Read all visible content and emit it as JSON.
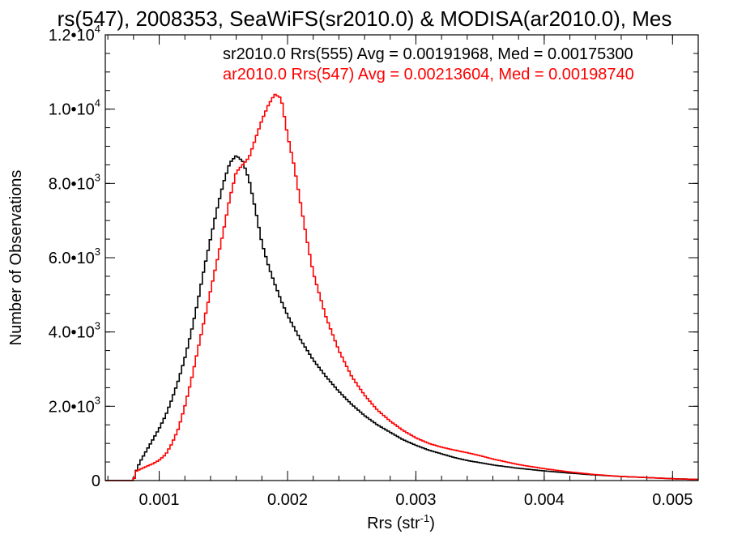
{
  "chart_data": {
    "type": "line",
    "title": "rs(547), 2008353, SeaWiFS(sr2010.0) & MODISA(ar2010.0), Mes",
    "xlabel": "Rrs (str",
    "xlabel_exp": "-1",
    "xlabel_end": ")",
    "ylabel": "Number of Observations",
    "xlim": [
      0.00058,
      0.0052
    ],
    "ylim": [
      0,
      12000
    ],
    "x_ticks": [
      {
        "value": 0.001,
        "label": "0.001"
      },
      {
        "value": 0.002,
        "label": "0.002"
      },
      {
        "value": 0.003,
        "label": "0.003"
      },
      {
        "value": 0.004,
        "label": "0.004"
      },
      {
        "value": 0.005,
        "label": "0.005"
      }
    ],
    "y_ticks": [
      {
        "value": 0,
        "mant": "0",
        "exp": ""
      },
      {
        "value": 2000,
        "mant": "2.0•10",
        "exp": "3"
      },
      {
        "value": 4000,
        "mant": "4.0•10",
        "exp": "3"
      },
      {
        "value": 6000,
        "mant": "6.0•10",
        "exp": "3"
      },
      {
        "value": 8000,
        "mant": "8.0•10",
        "exp": "3"
      },
      {
        "value": 10000,
        "mant": "1.0•10",
        "exp": "4"
      },
      {
        "value": 12000,
        "mant": "1.2•10",
        "exp": "4"
      }
    ],
    "grid": false,
    "legend_position": "top-right",
    "series": [
      {
        "name": "sr2010.0 Rrs(555) Avg = 0.00191968, Med = 0.00175300",
        "color": "#000000",
        "x": [
          0.00058,
          0.0008,
          0.00082,
          0.00085,
          0.0009,
          0.00095,
          0.001,
          0.00105,
          0.0011,
          0.00115,
          0.0012,
          0.00125,
          0.0013,
          0.00135,
          0.0014,
          0.00145,
          0.0015,
          0.00155,
          0.0016,
          0.00165,
          0.0017,
          0.00175,
          0.0018,
          0.00185,
          0.0019,
          0.00195,
          0.002,
          0.0021,
          0.0022,
          0.0023,
          0.0024,
          0.0025,
          0.0026,
          0.0027,
          0.0028,
          0.0029,
          0.003,
          0.0031,
          0.0032,
          0.0033,
          0.0034,
          0.0036,
          0.0038,
          0.004,
          0.0042,
          0.0044,
          0.0046,
          0.0048,
          0.005,
          0.0052
        ],
        "y": [
          0,
          0,
          250,
          500,
          800,
          1100,
          1400,
          1750,
          2200,
          2700,
          3300,
          4000,
          4800,
          5700,
          6500,
          7300,
          8000,
          8550,
          8750,
          8600,
          8100,
          7300,
          6400,
          5800,
          5300,
          4850,
          4450,
          3800,
          3250,
          2800,
          2400,
          2050,
          1750,
          1500,
          1300,
          1100,
          950,
          820,
          720,
          620,
          540,
          420,
          330,
          260,
          200,
          150,
          110,
          80,
          50,
          30
        ]
      },
      {
        "name": "ar2010.0 Rrs(547) Avg = 0.00213604, Med = 0.00198740",
        "color": "#ff0000",
        "x": [
          0.00058,
          0.0008,
          0.00082,
          0.00085,
          0.0009,
          0.00095,
          0.001,
          0.00105,
          0.0011,
          0.00115,
          0.0012,
          0.00125,
          0.0013,
          0.00135,
          0.0014,
          0.00145,
          0.0015,
          0.00155,
          0.0016,
          0.00165,
          0.0017,
          0.00175,
          0.0018,
          0.00185,
          0.0019,
          0.00195,
          0.002,
          0.00205,
          0.0021,
          0.00215,
          0.0022,
          0.0023,
          0.0024,
          0.0025,
          0.0026,
          0.0027,
          0.0028,
          0.0029,
          0.003,
          0.0031,
          0.0032,
          0.0033,
          0.0034,
          0.0035,
          0.0036,
          0.0038,
          0.004,
          0.0042,
          0.0044,
          0.0046,
          0.0048,
          0.005,
          0.0052
        ],
        "y": [
          0,
          0,
          250,
          300,
          380,
          450,
          550,
          700,
          1000,
          1400,
          2000,
          2700,
          3500,
          4300,
          5100,
          5900,
          6700,
          7600,
          8300,
          8500,
          8700,
          9200,
          9700,
          10100,
          10400,
          10300,
          9300,
          8500,
          7500,
          6500,
          5600,
          4400,
          3500,
          2800,
          2300,
          1900,
          1600,
          1350,
          1150,
          1000,
          900,
          820,
          750,
          670,
          580,
          430,
          320,
          230,
          160,
          110,
          80,
          50,
          30
        ]
      }
    ]
  }
}
